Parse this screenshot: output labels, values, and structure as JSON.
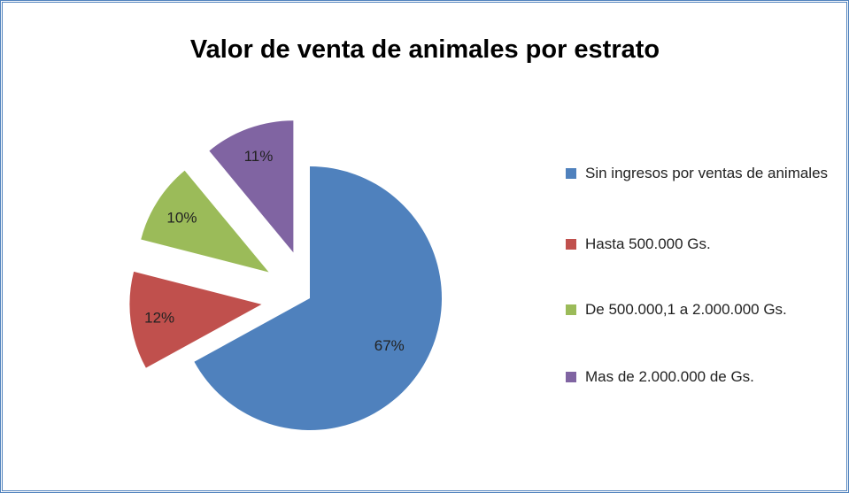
{
  "chart_data": {
    "type": "pie",
    "title": "Valor de venta de animales por estrato",
    "categories": [
      "Sin ingresos por ventas de animales",
      "Hasta 500.000 Gs.",
      "De 500.000,1 a 2.000.000 Gs.",
      "Mas de 2.000.000 de Gs."
    ],
    "values": [
      67,
      12,
      10,
      11
    ],
    "value_labels": [
      "67%",
      "12%",
      "10%",
      "11%"
    ],
    "colors": [
      "#4f81bd",
      "#c0504d",
      "#9bbb59",
      "#8064a2"
    ],
    "legend": "right"
  }
}
